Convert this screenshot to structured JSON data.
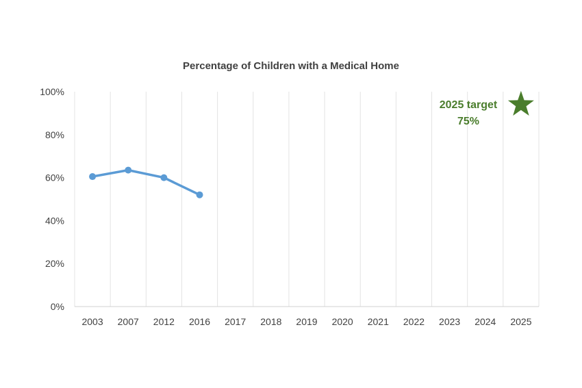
{
  "chart_data": {
    "type": "line",
    "title": "Percentage of Children with a Medical Home",
    "xlabel": "",
    "ylabel": "",
    "categories": [
      "2003",
      "2007",
      "2012",
      "2016",
      "2017",
      "2018",
      "2019",
      "2020",
      "2021",
      "2022",
      "2023",
      "2024",
      "2025"
    ],
    "series": [
      {
        "values": [
          60.5,
          63.5,
          60,
          52,
          null,
          null,
          null,
          null,
          null,
          null,
          null,
          null,
          null
        ],
        "color": "#5b9bd5"
      }
    ],
    "target": {
      "category": "2025",
      "value": 94,
      "label_line1": "2025 target",
      "label_line2": "75%",
      "color": "#4a7d2c",
      "marker": "star-icon"
    },
    "ylim": [
      0,
      100
    ],
    "yticks": [
      0,
      20,
      40,
      60,
      80,
      100
    ],
    "ytick_labels": [
      "0%",
      "20%",
      "40%",
      "60%",
      "80%",
      "100%"
    ],
    "grid": "vertical",
    "legend": "none"
  }
}
